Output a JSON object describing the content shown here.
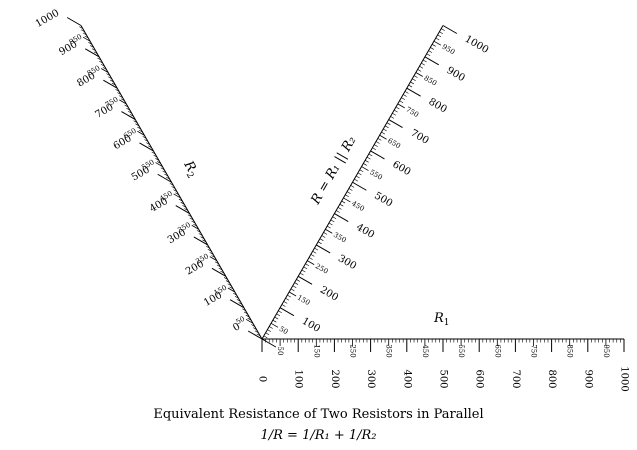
{
  "diagram": {
    "type": "parallel-resistance-nomogram",
    "range": [
      0,
      1000
    ],
    "scales": [
      {
        "id": "r1",
        "label": "R",
        "label_sub": "1",
        "angle_deg": 0,
        "major_labels": [
          "0",
          "100",
          "200",
          "300",
          "400",
          "500",
          "600",
          "700",
          "800",
          "900",
          "1000"
        ],
        "minor_labels": [
          "50",
          "150",
          "250",
          "350",
          "450",
          "550",
          "650",
          "750",
          "850",
          "950"
        ]
      },
      {
        "id": "r2",
        "label": "R",
        "label_sub": "2",
        "angle_deg": 120,
        "major_labels": [
          "0",
          "100",
          "200",
          "300",
          "400",
          "500",
          "600",
          "700",
          "800",
          "900",
          "1000"
        ],
        "minor_labels": [
          "50",
          "150",
          "250",
          "350",
          "450",
          "550",
          "650",
          "750",
          "850",
          "950"
        ]
      },
      {
        "id": "r",
        "label": "R = R₁ || R₂",
        "angle_deg": 60,
        "major_labels": [
          "100",
          "200",
          "300",
          "400",
          "500",
          "600",
          "700",
          "800",
          "900",
          "1000"
        ],
        "minor_labels": [
          "50",
          "150",
          "250",
          "350",
          "450",
          "550",
          "650",
          "750",
          "850",
          "950"
        ]
      }
    ]
  },
  "caption": {
    "title": "Equivalent Resistance of Two Resistors in Parallel",
    "formula": "1/R = 1/R₁ + 1/R₂"
  }
}
